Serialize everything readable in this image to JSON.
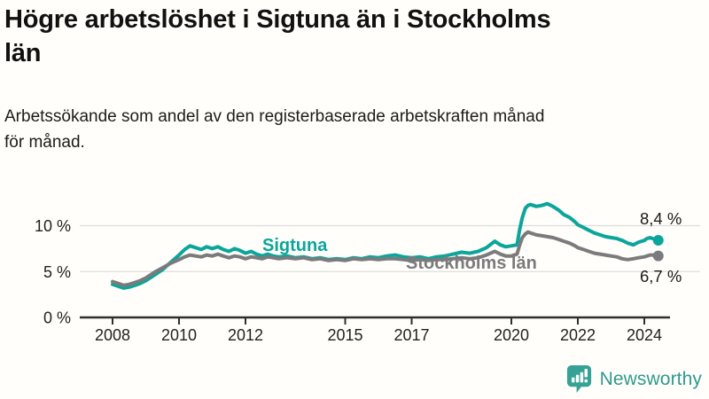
{
  "header": {
    "title": "Högre arbetslöshet i Sigtuna än i Stockholms\nlän",
    "subtitle": "Arbetssökande som andel av den registerbaserade arbetskraften månad\nför månad."
  },
  "chart_data": {
    "type": "line",
    "title": "Högre arbetslöshet i Sigtuna än i Stockholms län",
    "subtitle": "Arbetssökande som andel av den registerbaserade arbetskraften månad för månad.",
    "xlabel": "",
    "ylabel": "",
    "x_axis": {
      "unit": "year",
      "range": [
        2007.9,
        2025.0
      ],
      "ticks": [
        2008,
        2010,
        2012,
        2015,
        2017,
        2020,
        2022,
        2024
      ],
      "tick_labels": [
        "2008",
        "2010",
        "2012",
        "2015",
        "2017",
        "2020",
        "2022",
        "2024"
      ]
    },
    "y_axis": {
      "unit": "percent",
      "range": [
        0,
        13.8
      ],
      "ticks": [
        0,
        5,
        10
      ],
      "tick_labels": [
        "0 %",
        "5 %",
        "10 %"
      ],
      "grid": true
    },
    "legend_position": "inline-labels",
    "series": [
      {
        "name": "Sigtuna",
        "color": "#0ba69b",
        "end_label": "8,4 %",
        "end_value": 8.4,
        "points": [
          [
            2008.0,
            3.6
          ],
          [
            2008.17,
            3.4
          ],
          [
            2008.33,
            3.2
          ],
          [
            2008.5,
            3.3
          ],
          [
            2008.67,
            3.5
          ],
          [
            2008.83,
            3.7
          ],
          [
            2009.0,
            4.0
          ],
          [
            2009.25,
            4.6
          ],
          [
            2009.5,
            5.2
          ],
          [
            2009.75,
            6.0
          ],
          [
            2010.0,
            6.8
          ],
          [
            2010.17,
            7.4
          ],
          [
            2010.33,
            7.8
          ],
          [
            2010.5,
            7.6
          ],
          [
            2010.67,
            7.4
          ],
          [
            2010.83,
            7.7
          ],
          [
            2011.0,
            7.5
          ],
          [
            2011.17,
            7.7
          ],
          [
            2011.33,
            7.4
          ],
          [
            2011.5,
            7.2
          ],
          [
            2011.67,
            7.5
          ],
          [
            2011.83,
            7.3
          ],
          [
            2012.0,
            7.0
          ],
          [
            2012.17,
            7.2
          ],
          [
            2012.33,
            6.9
          ],
          [
            2012.5,
            6.7
          ],
          [
            2012.67,
            6.9
          ],
          [
            2012.83,
            6.7
          ],
          [
            2013.0,
            6.6
          ],
          [
            2013.25,
            6.7
          ],
          [
            2013.5,
            6.5
          ],
          [
            2013.75,
            6.6
          ],
          [
            2014.0,
            6.4
          ],
          [
            2014.25,
            6.5
          ],
          [
            2014.5,
            6.3
          ],
          [
            2014.75,
            6.4
          ],
          [
            2015.0,
            6.3
          ],
          [
            2015.25,
            6.5
          ],
          [
            2015.5,
            6.4
          ],
          [
            2015.75,
            6.6
          ],
          [
            2016.0,
            6.5
          ],
          [
            2016.25,
            6.7
          ],
          [
            2016.5,
            6.8
          ],
          [
            2016.75,
            6.6
          ],
          [
            2017.0,
            6.5
          ],
          [
            2017.25,
            6.6
          ],
          [
            2017.5,
            6.4
          ],
          [
            2017.75,
            6.6
          ],
          [
            2018.0,
            6.7
          ],
          [
            2018.25,
            6.9
          ],
          [
            2018.5,
            7.1
          ],
          [
            2018.75,
            7.0
          ],
          [
            2019.0,
            7.2
          ],
          [
            2019.25,
            7.6
          ],
          [
            2019.5,
            8.3
          ],
          [
            2019.67,
            7.9
          ],
          [
            2019.83,
            7.7
          ],
          [
            2020.0,
            7.8
          ],
          [
            2020.17,
            7.9
          ],
          [
            2020.25,
            9.6
          ],
          [
            2020.33,
            10.9
          ],
          [
            2020.42,
            11.9
          ],
          [
            2020.5,
            12.2
          ],
          [
            2020.58,
            12.3
          ],
          [
            2020.75,
            12.1
          ],
          [
            2020.92,
            12.2
          ],
          [
            2021.08,
            12.4
          ],
          [
            2021.25,
            12.1
          ],
          [
            2021.42,
            11.7
          ],
          [
            2021.58,
            11.2
          ],
          [
            2021.75,
            10.9
          ],
          [
            2021.92,
            10.4
          ],
          [
            2022.0,
            10.1
          ],
          [
            2022.17,
            9.8
          ],
          [
            2022.33,
            9.5
          ],
          [
            2022.5,
            9.2
          ],
          [
            2022.67,
            9.0
          ],
          [
            2022.83,
            8.8
          ],
          [
            2023.0,
            8.7
          ],
          [
            2023.17,
            8.6
          ],
          [
            2023.33,
            8.4
          ],
          [
            2023.5,
            8.1
          ],
          [
            2023.67,
            7.9
          ],
          [
            2023.83,
            8.2
          ],
          [
            2024.0,
            8.4
          ],
          [
            2024.08,
            8.6
          ],
          [
            2024.17,
            8.7
          ],
          [
            2024.25,
            8.6
          ],
          [
            2024.42,
            8.4
          ]
        ]
      },
      {
        "name": "Stockholms län",
        "color": "#7b7b7e",
        "end_label": "6,7 %",
        "end_value": 6.7,
        "points": [
          [
            2008.0,
            3.9
          ],
          [
            2008.17,
            3.7
          ],
          [
            2008.33,
            3.5
          ],
          [
            2008.5,
            3.6
          ],
          [
            2008.67,
            3.8
          ],
          [
            2008.83,
            4.0
          ],
          [
            2009.0,
            4.3
          ],
          [
            2009.25,
            4.9
          ],
          [
            2009.5,
            5.4
          ],
          [
            2009.75,
            5.9
          ],
          [
            2010.0,
            6.3
          ],
          [
            2010.17,
            6.6
          ],
          [
            2010.33,
            6.8
          ],
          [
            2010.5,
            6.7
          ],
          [
            2010.67,
            6.6
          ],
          [
            2010.83,
            6.8
          ],
          [
            2011.0,
            6.7
          ],
          [
            2011.17,
            6.9
          ],
          [
            2011.33,
            6.7
          ],
          [
            2011.5,
            6.5
          ],
          [
            2011.67,
            6.7
          ],
          [
            2011.83,
            6.6
          ],
          [
            2012.0,
            6.4
          ],
          [
            2012.17,
            6.6
          ],
          [
            2012.33,
            6.5
          ],
          [
            2012.5,
            6.4
          ],
          [
            2012.67,
            6.6
          ],
          [
            2012.83,
            6.5
          ],
          [
            2013.0,
            6.4
          ],
          [
            2013.25,
            6.5
          ],
          [
            2013.5,
            6.4
          ],
          [
            2013.75,
            6.5
          ],
          [
            2014.0,
            6.3
          ],
          [
            2014.25,
            6.4
          ],
          [
            2014.5,
            6.2
          ],
          [
            2014.75,
            6.3
          ],
          [
            2015.0,
            6.2
          ],
          [
            2015.25,
            6.4
          ],
          [
            2015.5,
            6.3
          ],
          [
            2015.75,
            6.4
          ],
          [
            2016.0,
            6.3
          ],
          [
            2016.25,
            6.4
          ],
          [
            2016.5,
            6.4
          ],
          [
            2016.75,
            6.3
          ],
          [
            2017.0,
            6.2
          ],
          [
            2017.25,
            6.3
          ],
          [
            2017.5,
            6.2
          ],
          [
            2017.75,
            6.3
          ],
          [
            2018.0,
            6.3
          ],
          [
            2018.25,
            6.4
          ],
          [
            2018.5,
            6.5
          ],
          [
            2018.75,
            6.4
          ],
          [
            2019.0,
            6.5
          ],
          [
            2019.25,
            6.8
          ],
          [
            2019.5,
            7.2
          ],
          [
            2019.67,
            6.9
          ],
          [
            2019.83,
            6.7
          ],
          [
            2020.0,
            6.7
          ],
          [
            2020.17,
            6.9
          ],
          [
            2020.25,
            7.9
          ],
          [
            2020.33,
            8.7
          ],
          [
            2020.42,
            9.1
          ],
          [
            2020.5,
            9.3
          ],
          [
            2020.58,
            9.2
          ],
          [
            2020.75,
            9.0
          ],
          [
            2020.92,
            8.9
          ],
          [
            2021.08,
            8.8
          ],
          [
            2021.25,
            8.7
          ],
          [
            2021.42,
            8.5
          ],
          [
            2021.58,
            8.3
          ],
          [
            2021.75,
            8.1
          ],
          [
            2021.92,
            7.8
          ],
          [
            2022.0,
            7.6
          ],
          [
            2022.17,
            7.4
          ],
          [
            2022.33,
            7.2
          ],
          [
            2022.5,
            7.0
          ],
          [
            2022.67,
            6.9
          ],
          [
            2022.83,
            6.8
          ],
          [
            2023.0,
            6.7
          ],
          [
            2023.17,
            6.6
          ],
          [
            2023.33,
            6.4
          ],
          [
            2023.5,
            6.3
          ],
          [
            2023.67,
            6.4
          ],
          [
            2023.83,
            6.5
          ],
          [
            2024.0,
            6.6
          ],
          [
            2024.17,
            6.8
          ],
          [
            2024.25,
            6.8
          ],
          [
            2024.42,
            6.7
          ]
        ]
      }
    ],
    "colors": {
      "grid": "#dddddb",
      "axis": "#2f2f2f",
      "tick_text": "#222222",
      "value_label_text": "#1a1a1a"
    }
  },
  "footer": {
    "brand": "Newsworthy",
    "brand_color": "#2f9a8e",
    "icon_color": "#35a295"
  }
}
